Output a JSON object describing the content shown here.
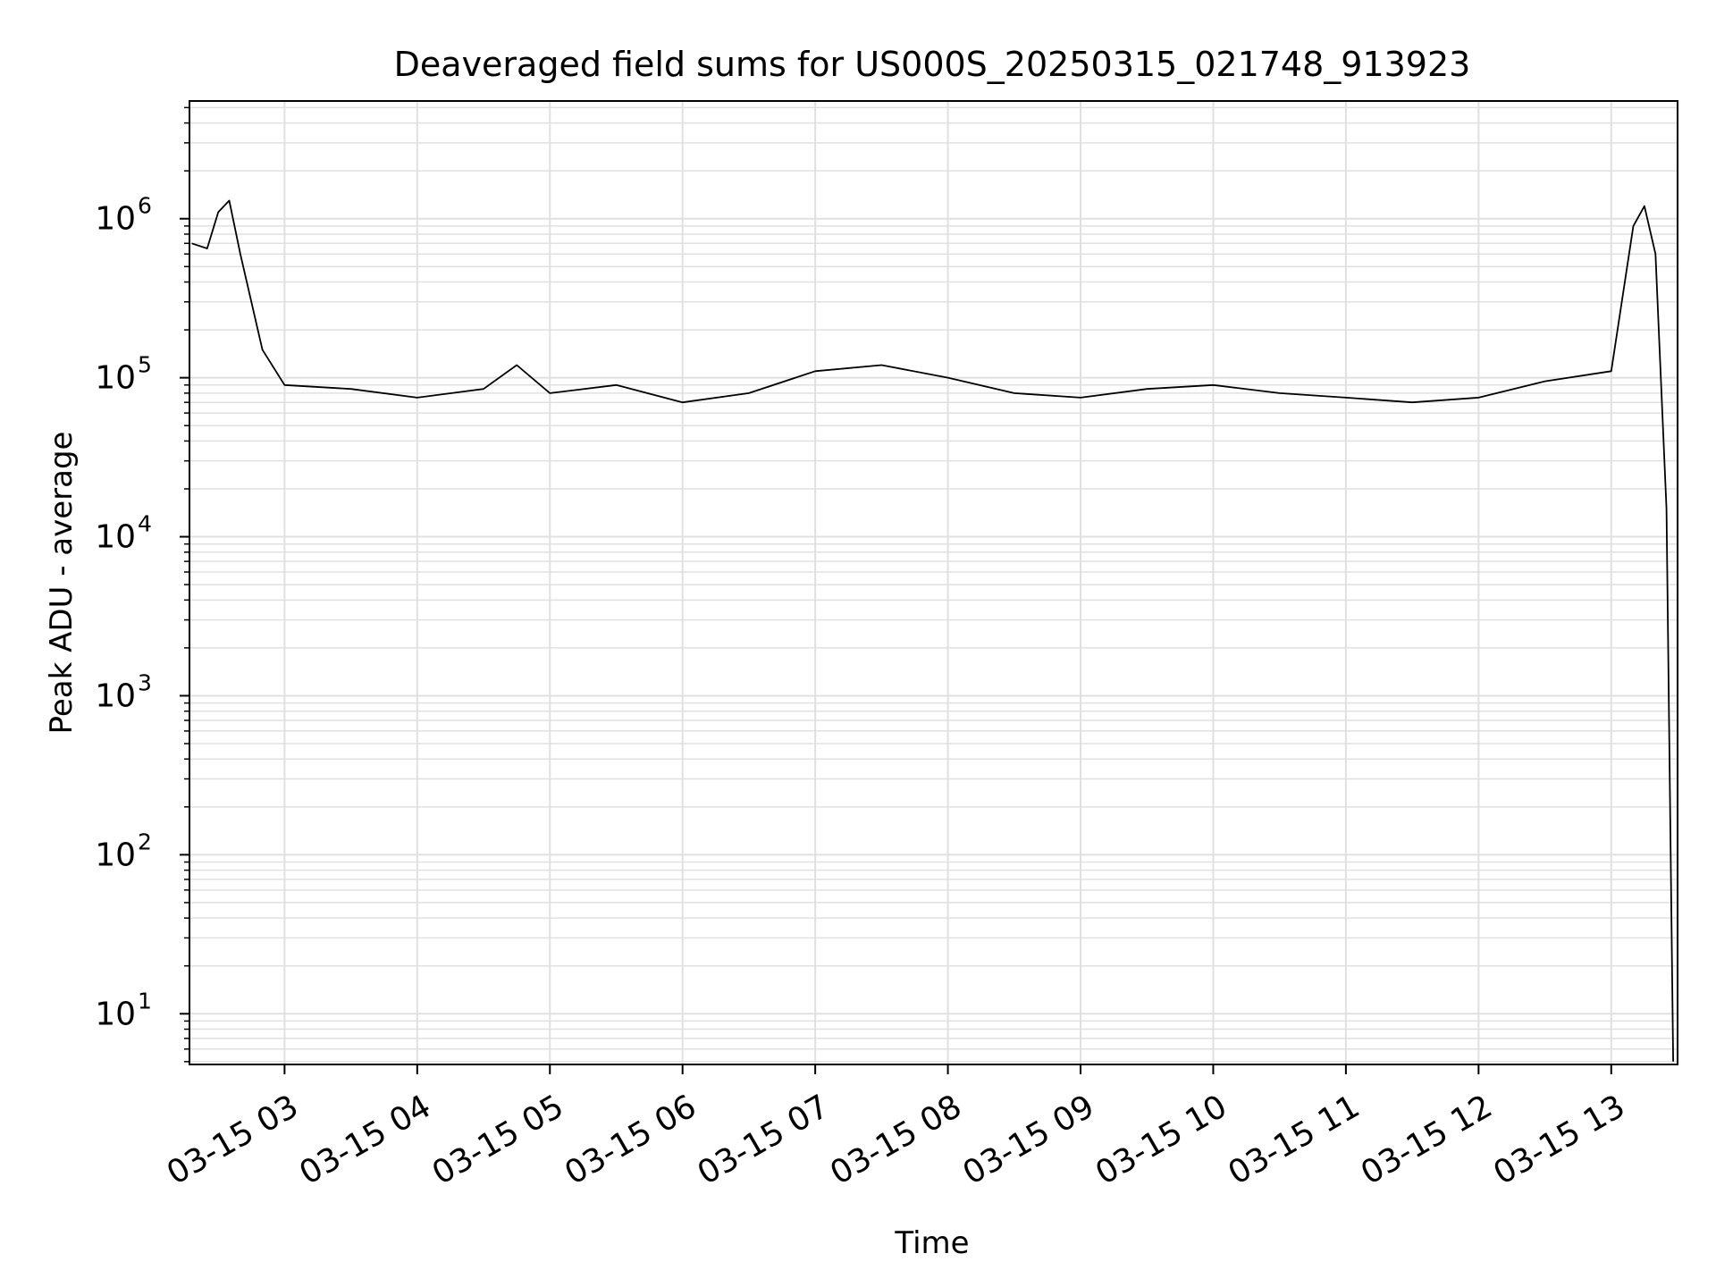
{
  "chart_data": {
    "type": "line",
    "title": "Deaveraged field sums for US000S_20250315_021748_913923",
    "xlabel": "Time",
    "ylabel": "Peak ADU - average",
    "y_scale": "log",
    "grid": "on (major and minor)",
    "legend": "none",
    "line_color": "#000000",
    "grid_color": "#e0e0e0",
    "xlim": [
      "03-15 02:17",
      "03-15 13:30"
    ],
    "ylim": [
      4.8,
      5500000
    ],
    "x_ticks": [
      "03-15 03",
      "03-15 04",
      "03-15 05",
      "03-15 06",
      "03-15 07",
      "03-15 08",
      "03-15 09",
      "03-15 10",
      "03-15 11",
      "03-15 12",
      "03-15 13"
    ],
    "y_ticks": [
      {
        "base": "10",
        "exp": "1",
        "value": 10
      },
      {
        "base": "10",
        "exp": "2",
        "value": 100
      },
      {
        "base": "10",
        "exp": "3",
        "value": 1000
      },
      {
        "base": "10",
        "exp": "4",
        "value": 10000
      },
      {
        "base": "10",
        "exp": "5",
        "value": 100000
      },
      {
        "base": "10",
        "exp": "6",
        "value": 1000000
      }
    ],
    "series": [
      {
        "values_description_note": "",
        "x": [
          "03-15 02:18",
          "03-15 02:25",
          "03-15 02:30",
          "03-15 02:35",
          "03-15 02:40",
          "03-15 02:50",
          "03-15 03:00",
          "03-15 03:30",
          "03-15 04:00",
          "03-15 04:30",
          "03-15 04:45",
          "03-15 05:00",
          "03-15 05:30",
          "03-15 06:00",
          "03-15 06:30",
          "03-15 07:00",
          "03-15 07:30",
          "03-15 08:00",
          "03-15 08:30",
          "03-15 09:00",
          "03-15 09:30",
          "03-15 10:00",
          "03-15 10:30",
          "03-15 11:00",
          "03-15 11:30",
          "03-15 12:00",
          "03-15 12:30",
          "03-15 13:00",
          "03-15 13:10",
          "03-15 13:15",
          "03-15 13:20",
          "03-15 13:25",
          "03-15 13:28"
        ],
        "y": [
          700000,
          650000,
          1100000,
          1300000,
          600000,
          150000,
          90000,
          85000,
          75000,
          85000,
          120000,
          80000,
          90000,
          70000,
          80000,
          110000,
          120000,
          100000,
          80000,
          75000,
          85000,
          90000,
          80000,
          75000,
          70000,
          75000,
          95000,
          110000,
          900000,
          1200000,
          600000,
          15000,
          5
        ]
      }
    ]
  }
}
